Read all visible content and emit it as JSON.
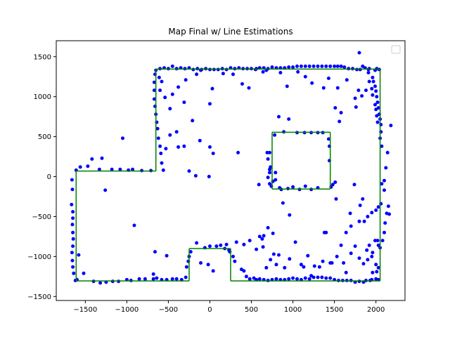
{
  "chart_data": {
    "type": "scatter",
    "title": "Map Final w/ Line Estimations",
    "xlabel": "",
    "ylabel": "",
    "xlim": [
      -1850,
      2350
    ],
    "ylim": [
      -1550,
      1700
    ],
    "xticks": [
      -1500,
      -1000,
      -500,
      0,
      500,
      1000,
      1500,
      2000
    ],
    "yticks": [
      -1500,
      -1000,
      -500,
      0,
      500,
      1000,
      1500
    ],
    "xtick_labels": [
      "−1500",
      "−1000",
      "−500",
      "0",
      "500",
      "1000",
      "1500",
      "2000"
    ],
    "ytick_labels": [
      "−1500",
      "−1000",
      "−500",
      "0",
      "500",
      "1000",
      "1500"
    ],
    "grid": false,
    "legend": {
      "placement": "top-right",
      "entries": []
    },
    "colors": {
      "points": "#0000ff",
      "lines": "#008000"
    },
    "line_estimations": [
      [
        [
          -1610,
          -1305
        ],
        [
          -1610,
          70
        ]
      ],
      [
        [
          -1610,
          70
        ],
        [
          -650,
          70
        ]
      ],
      [
        [
          -650,
          70
        ],
        [
          -650,
          1345
        ]
      ],
      [
        [
          -650,
          1345
        ],
        [
          2050,
          1345
        ]
      ],
      [
        [
          2050,
          1345
        ],
        [
          2050,
          -1305
        ]
      ],
      [
        [
          2050,
          -1305
        ],
        [
          250,
          -1305
        ]
      ],
      [
        [
          250,
          -1305
        ],
        [
          250,
          -900
        ]
      ],
      [
        [
          250,
          -900
        ],
        [
          -250,
          -900
        ]
      ],
      [
        [
          -250,
          -900
        ],
        [
          -250,
          -1305
        ]
      ],
      [
        [
          -250,
          -1305
        ],
        [
          -1610,
          -1305
        ]
      ],
      [
        [
          750,
          555
        ],
        [
          1450,
          555
        ]
      ],
      [
        [
          1450,
          555
        ],
        [
          1450,
          -155
        ]
      ],
      [
        [
          1450,
          -155
        ],
        [
          750,
          -155
        ]
      ],
      [
        [
          750,
          -155
        ],
        [
          750,
          555
        ]
      ]
    ],
    "points": [
      [
        -1660,
        -40
      ],
      [
        -1655,
        -160
      ],
      [
        -1665,
        -350
      ],
      [
        -1650,
        -440
      ],
      [
        -1650,
        -520
      ],
      [
        -1655,
        -600
      ],
      [
        -1650,
        -700
      ],
      [
        -1645,
        -780
      ],
      [
        -1650,
        -870
      ],
      [
        -1660,
        -950
      ],
      [
        -1655,
        -1050
      ],
      [
        -1650,
        -1130
      ],
      [
        -1640,
        -1210
      ],
      [
        -1620,
        -1300
      ],
      [
        -1600,
        -1290
      ],
      [
        -1610,
        80
      ],
      [
        -1560,
        120
      ],
      [
        -1470,
        130
      ],
      [
        -1420,
        220
      ],
      [
        -1330,
        90
      ],
      [
        -1300,
        230
      ],
      [
        -1180,
        90
      ],
      [
        -1080,
        90
      ],
      [
        -980,
        80
      ],
      [
        -930,
        90
      ],
      [
        -820,
        75
      ],
      [
        -710,
        75
      ],
      [
        -1050,
        480
      ],
      [
        -1260,
        -170
      ],
      [
        -910,
        -610
      ],
      [
        -1580,
        -980
      ],
      [
        -1520,
        -1210
      ],
      [
        -1400,
        -1310
      ],
      [
        -1320,
        -1330
      ],
      [
        -1250,
        -1320
      ],
      [
        -1170,
        -1310
      ],
      [
        -1100,
        -1310
      ],
      [
        -1000,
        -1290
      ],
      [
        -950,
        -1300
      ],
      [
        -850,
        -1280
      ],
      [
        -780,
        -1280
      ],
      [
        -680,
        -1280
      ],
      [
        -640,
        -1270
      ],
      [
        -580,
        -1290
      ],
      [
        -520,
        -1290
      ],
      [
        -450,
        -1280
      ],
      [
        -400,
        -1280
      ],
      [
        -340,
        -1290
      ],
      [
        -290,
        -1260
      ],
      [
        -680,
        -1220
      ],
      [
        -660,
        -940
      ],
      [
        -520,
        -990
      ],
      [
        -280,
        -1130
      ],
      [
        -260,
        -1060
      ],
      [
        -250,
        -1000
      ],
      [
        -230,
        -940
      ],
      [
        -160,
        -830
      ],
      [
        -110,
        -1080
      ],
      [
        -60,
        -890
      ],
      [
        0,
        -870
      ],
      [
        -20,
        -1100
      ],
      [
        40,
        -1180
      ],
      [
        80,
        -870
      ],
      [
        130,
        -860
      ],
      [
        180,
        -900
      ],
      [
        200,
        -850
      ],
      [
        230,
        -920
      ],
      [
        240,
        -940
      ],
      [
        280,
        -1000
      ],
      [
        300,
        -1060
      ],
      [
        380,
        -1160
      ],
      [
        410,
        -1180
      ],
      [
        440,
        -1250
      ],
      [
        480,
        -1280
      ],
      [
        530,
        -1270
      ],
      [
        560,
        -1290
      ],
      [
        600,
        -1280
      ],
      [
        650,
        -1290
      ],
      [
        700,
        -1300
      ],
      [
        750,
        -1290
      ],
      [
        800,
        -1280
      ],
      [
        850,
        -1290
      ],
      [
        900,
        -1290
      ],
      [
        950,
        -1280
      ],
      [
        1000,
        -1270
      ],
      [
        1050,
        -1280
      ],
      [
        1100,
        -1290
      ],
      [
        1150,
        -1270
      ],
      [
        1200,
        -1280
      ],
      [
        1250,
        -1260
      ],
      [
        1300,
        -1260
      ],
      [
        1350,
        -1260
      ],
      [
        1400,
        -1270
      ],
      [
        1450,
        -1270
      ],
      [
        1500,
        -1290
      ],
      [
        1550,
        -1300
      ],
      [
        1600,
        -1300
      ],
      [
        1650,
        -1300
      ],
      [
        1700,
        -1300
      ],
      [
        1750,
        -1320
      ],
      [
        1800,
        -1310
      ],
      [
        1850,
        -1320
      ],
      [
        1880,
        -1300
      ],
      [
        1950,
        -1290
      ],
      [
        2000,
        -1280
      ],
      [
        2030,
        -1290
      ],
      [
        320,
        -820
      ],
      [
        410,
        -850
      ],
      [
        480,
        -800
      ],
      [
        560,
        -910
      ],
      [
        630,
        -780
      ],
      [
        650,
        -740
      ],
      [
        680,
        -1140
      ],
      [
        730,
        -1040
      ],
      [
        770,
        -970
      ],
      [
        800,
        -1100
      ],
      [
        830,
        -980
      ],
      [
        900,
        -1140
      ],
      [
        960,
        -1030
      ],
      [
        1030,
        -820
      ],
      [
        1100,
        -1100
      ],
      [
        1130,
        -1130
      ],
      [
        1180,
        -990
      ],
      [
        1260,
        -1120
      ],
      [
        1360,
        -1060
      ],
      [
        1380,
        -700
      ],
      [
        1450,
        -1080
      ],
      [
        1530,
        -1000
      ],
      [
        1610,
        -1080
      ],
      [
        1640,
        -1200
      ],
      [
        1700,
        -960
      ],
      [
        1750,
        -870
      ],
      [
        1800,
        -1020
      ],
      [
        1850,
        -1090
      ],
      [
        1890,
        -920
      ],
      [
        1900,
        -1040
      ],
      [
        1920,
        -860
      ],
      [
        1950,
        -1000
      ],
      [
        1960,
        -950
      ],
      [
        2000,
        -1100
      ],
      [
        1960,
        -1200
      ],
      [
        2010,
        -1190
      ],
      [
        2030,
        -1140
      ],
      [
        1930,
        -1300
      ],
      [
        1700,
        -620
      ],
      [
        1800,
        -560
      ],
      [
        1900,
        -500
      ],
      [
        1950,
        -450
      ],
      [
        2000,
        -420
      ],
      [
        2030,
        -380
      ],
      [
        2060,
        -340
      ],
      [
        1990,
        -800
      ],
      [
        2020,
        -800
      ],
      [
        2030,
        -860
      ],
      [
        2050,
        -890
      ],
      [
        2080,
        -800
      ],
      [
        2100,
        -700
      ],
      [
        2110,
        -580
      ],
      [
        2130,
        -460
      ],
      [
        2150,
        -370
      ],
      [
        2160,
        -470
      ],
      [
        2100,
        -170
      ],
      [
        2070,
        -90
      ],
      [
        2100,
        -50
      ],
      [
        2120,
        110
      ],
      [
        2140,
        300
      ],
      [
        2180,
        640
      ],
      [
        2070,
        380
      ],
      [
        2050,
        480
      ],
      [
        2060,
        560
      ],
      [
        2060,
        650
      ],
      [
        2050,
        720
      ],
      [
        2040,
        780
      ],
      [
        2030,
        860
      ],
      [
        2020,
        930
      ],
      [
        2010,
        1000
      ],
      [
        2000,
        1070
      ],
      [
        1990,
        1130
      ],
      [
        1970,
        1190
      ],
      [
        1960,
        1240
      ],
      [
        1950,
        1100
      ],
      [
        1960,
        1020
      ],
      [
        1990,
        900
      ],
      [
        2000,
        840
      ],
      [
        2010,
        760
      ],
      [
        2020,
        680
      ],
      [
        1990,
        1330
      ],
      [
        2010,
        1350
      ],
      [
        2040,
        1340
      ],
      [
        1920,
        1350
      ],
      [
        1870,
        1360
      ],
      [
        1810,
        1340
      ],
      [
        1770,
        1340
      ],
      [
        1720,
        1350
      ],
      [
        1670,
        1350
      ],
      [
        1620,
        1370
      ],
      [
        1580,
        1380
      ],
      [
        1540,
        1380
      ],
      [
        1500,
        1380
      ],
      [
        1450,
        1380
      ],
      [
        1400,
        1380
      ],
      [
        1350,
        1380
      ],
      [
        1300,
        1380
      ],
      [
        1250,
        1380
      ],
      [
        1200,
        1380
      ],
      [
        1150,
        1380
      ],
      [
        1100,
        1380
      ],
      [
        1050,
        1380
      ],
      [
        1000,
        1370
      ],
      [
        950,
        1370
      ],
      [
        900,
        1360
      ],
      [
        850,
        1360
      ],
      [
        800,
        1360
      ],
      [
        750,
        1370
      ],
      [
        700,
        1350
      ],
      [
        650,
        1360
      ],
      [
        600,
        1360
      ],
      [
        550,
        1340
      ],
      [
        500,
        1350
      ],
      [
        450,
        1350
      ],
      [
        400,
        1350
      ],
      [
        350,
        1360
      ],
      [
        300,
        1350
      ],
      [
        250,
        1360
      ],
      [
        200,
        1340
      ],
      [
        150,
        1350
      ],
      [
        100,
        1340
      ],
      [
        50,
        1340
      ],
      [
        0,
        1340
      ],
      [
        -50,
        1350
      ],
      [
        -100,
        1340
      ],
      [
        -150,
        1350
      ],
      [
        -200,
        1340
      ],
      [
        -250,
        1360
      ],
      [
        -300,
        1350
      ],
      [
        -350,
        1360
      ],
      [
        -400,
        1350
      ],
      [
        -450,
        1380
      ],
      [
        -500,
        1350
      ],
      [
        -550,
        1360
      ],
      [
        -600,
        1350
      ],
      [
        -650,
        1330
      ],
      [
        1800,
        1550
      ],
      [
        1840,
        1380
      ],
      [
        1910,
        1340
      ],
      [
        1790,
        1080
      ],
      [
        1750,
        980
      ],
      [
        1830,
        1010
      ],
      [
        1880,
        1080
      ],
      [
        1920,
        1190
      ],
      [
        1910,
        1300
      ],
      [
        1650,
        1210
      ],
      [
        1540,
        1110
      ],
      [
        1430,
        1230
      ],
      [
        1370,
        1110
      ],
      [
        1230,
        1170
      ],
      [
        1150,
        1250
      ],
      [
        1060,
        1310
      ],
      [
        930,
        1130
      ],
      [
        850,
        1300
      ],
      [
        680,
        1330
      ],
      [
        640,
        1310
      ],
      [
        560,
        1350
      ],
      [
        470,
        1110
      ],
      [
        390,
        1160
      ],
      [
        280,
        1280
      ],
      [
        160,
        1290
      ],
      [
        30,
        1100
      ],
      [
        0,
        910
      ],
      [
        -110,
        1330
      ],
      [
        -160,
        1280
      ],
      [
        -290,
        1210
      ],
      [
        -310,
        930
      ],
      [
        -380,
        1120
      ],
      [
        -450,
        1030
      ],
      [
        -480,
        850
      ],
      [
        -540,
        990
      ],
      [
        -580,
        1190
      ],
      [
        -600,
        1080
      ],
      [
        -610,
        1240
      ],
      [
        -660,
        1280
      ],
      [
        -670,
        1180
      ],
      [
        -670,
        1080
      ],
      [
        -670,
        970
      ],
      [
        -660,
        880
      ],
      [
        -650,
        780
      ],
      [
        -640,
        680
      ],
      [
        -630,
        600
      ],
      [
        -620,
        480
      ],
      [
        -600,
        380
      ],
      [
        -590,
        290
      ],
      [
        -580,
        170
      ],
      [
        -560,
        80
      ],
      [
        -480,
        520
      ],
      [
        -530,
        350
      ],
      [
        -400,
        560
      ],
      [
        -380,
        370
      ],
      [
        -310,
        380
      ],
      [
        -250,
        70
      ],
      [
        -210,
        700
      ],
      [
        -170,
        10
      ],
      [
        -120,
        450
      ],
      [
        0,
        370
      ],
      [
        40,
        290
      ],
      [
        -10,
        0
      ],
      [
        340,
        300
      ],
      [
        590,
        -100
      ],
      [
        720,
        -90
      ],
      [
        740,
        -120
      ],
      [
        760,
        -60
      ],
      [
        720,
        90
      ],
      [
        720,
        50
      ],
      [
        730,
        120
      ],
      [
        700,
        -10
      ],
      [
        690,
        300
      ],
      [
        700,
        220
      ],
      [
        720,
        300
      ],
      [
        780,
        520
      ],
      [
        790,
        50
      ],
      [
        790,
        -40
      ],
      [
        830,
        750
      ],
      [
        840,
        -140
      ],
      [
        860,
        -160
      ],
      [
        890,
        560
      ],
      [
        940,
        -150
      ],
      [
        950,
        720
      ],
      [
        1000,
        -130
      ],
      [
        1050,
        550
      ],
      [
        1080,
        -160
      ],
      [
        1140,
        550
      ],
      [
        1150,
        -120
      ],
      [
        1220,
        550
      ],
      [
        1220,
        -160
      ],
      [
        1300,
        550
      ],
      [
        1300,
        -140
      ],
      [
        1360,
        550
      ],
      [
        1430,
        470
      ],
      [
        1440,
        380
      ],
      [
        1440,
        200
      ],
      [
        1460,
        -130
      ],
      [
        1480,
        -100
      ],
      [
        1510,
        -70
      ],
      [
        1510,
        860
      ],
      [
        1560,
        690
      ],
      [
        1580,
        800
      ],
      [
        1760,
        870
      ],
      [
        1740,
        -100
      ],
      [
        1810,
        -360
      ],
      [
        1840,
        -280
      ],
      [
        1860,
        -560
      ],
      [
        1520,
        -280
      ],
      [
        1690,
        -460
      ],
      [
        1640,
        -700
      ],
      [
        1580,
        -860
      ],
      [
        1400,
        -700
      ],
      [
        880,
        -330
      ],
      [
        960,
        -480
      ],
      [
        760,
        -710
      ],
      [
        700,
        -640
      ],
      [
        640,
        -880
      ],
      [
        600,
        -750
      ],
      [
        1470,
        -1080
      ],
      [
        1320,
        -1130
      ],
      [
        1220,
        -1240
      ]
    ]
  }
}
